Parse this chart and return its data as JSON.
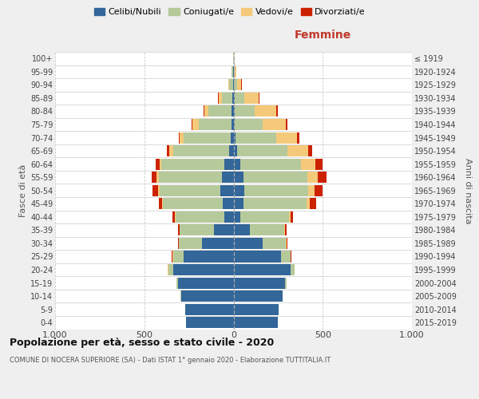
{
  "age_groups": [
    "0-4",
    "5-9",
    "10-14",
    "15-19",
    "20-24",
    "25-29",
    "30-34",
    "35-39",
    "40-44",
    "45-49",
    "50-54",
    "55-59",
    "60-64",
    "65-69",
    "70-74",
    "75-79",
    "80-84",
    "85-89",
    "90-94",
    "95-99",
    "100+"
  ],
  "birth_years": [
    "2015-2019",
    "2010-2014",
    "2005-2009",
    "2000-2004",
    "1995-1999",
    "1990-1994",
    "1985-1989",
    "1980-1984",
    "1975-1979",
    "1970-1974",
    "1965-1969",
    "1960-1964",
    "1955-1959",
    "1950-1954",
    "1945-1949",
    "1940-1944",
    "1935-1939",
    "1930-1934",
    "1925-1929",
    "1920-1924",
    "≤ 1919"
  ],
  "male": {
    "celibe": [
      265,
      270,
      295,
      310,
      340,
      280,
      175,
      110,
      50,
      60,
      75,
      65,
      50,
      25,
      15,
      10,
      10,
      5,
      3,
      2,
      0
    ],
    "coniugato": [
      0,
      1,
      3,
      10,
      25,
      60,
      130,
      190,
      275,
      335,
      340,
      355,
      355,
      315,
      265,
      185,
      130,
      60,
      20,
      8,
      2
    ],
    "vedovo": [
      0,
      0,
      0,
      0,
      2,
      2,
      2,
      2,
      3,
      5,
      8,
      10,
      10,
      20,
      20,
      35,
      25,
      20,
      5,
      2,
      0
    ],
    "divorziato": [
      0,
      0,
      0,
      0,
      2,
      3,
      5,
      10,
      15,
      20,
      30,
      30,
      20,
      12,
      5,
      5,
      5,
      2,
      0,
      0,
      0
    ]
  },
  "female": {
    "nubile": [
      250,
      255,
      275,
      290,
      320,
      265,
      165,
      90,
      40,
      55,
      60,
      55,
      40,
      20,
      10,
      8,
      8,
      5,
      3,
      2,
      0
    ],
    "coniugata": [
      0,
      0,
      2,
      8,
      22,
      55,
      130,
      195,
      270,
      355,
      360,
      360,
      340,
      280,
      230,
      155,
      110,
      55,
      15,
      5,
      2
    ],
    "vedova": [
      0,
      0,
      0,
      0,
      1,
      2,
      3,
      5,
      10,
      18,
      35,
      55,
      80,
      120,
      115,
      130,
      120,
      80,
      25,
      8,
      1
    ],
    "divorziata": [
      0,
      0,
      0,
      0,
      1,
      3,
      5,
      8,
      15,
      35,
      45,
      50,
      40,
      20,
      15,
      8,
      10,
      5,
      2,
      0,
      0
    ]
  },
  "colors": {
    "celibe": "#336699",
    "coniugato": "#b5c99a",
    "vedovo": "#f5c97a",
    "divorziato": "#cc2200"
  },
  "legend_labels": [
    "Celibi/Nubili",
    "Coniugati/e",
    "Vedovi/e",
    "Divorziati/e"
  ],
  "title": "Popolazione per età, sesso e stato civile - 2020",
  "subtitle": "COMUNE DI NOCERA SUPERIORE (SA) - Dati ISTAT 1° gennaio 2020 - Elaborazione TUTTITALIA.IT",
  "label_femmine": "Femmine",
  "ylabel_left": "Fasce di età",
  "ylabel_right": "Anni di nascita",
  "xlim": 1000,
  "bg_color": "#efefef",
  "plot_bg": "#ffffff"
}
